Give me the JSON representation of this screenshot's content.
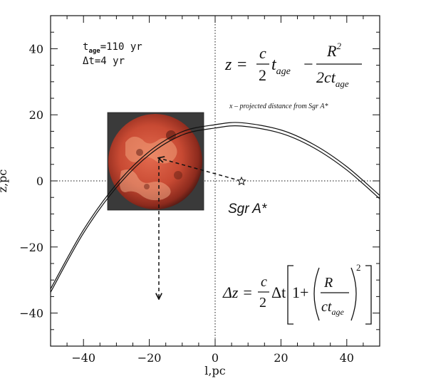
{
  "chart_data": {
    "type": "line",
    "xlabel": "l,pc",
    "ylabel": "z,pc",
    "xlim": [
      -50,
      50
    ],
    "ylim": [
      -50,
      50
    ],
    "xticks": [
      -40,
      -20,
      0,
      20,
      40
    ],
    "yticks": [
      40,
      20,
      0,
      -20,
      -40
    ],
    "xtick_labels": [
      "−40",
      "−20",
      "0",
      "20",
      "40"
    ],
    "ytick_labels": [
      "40",
      "20",
      "0",
      "−20",
      "−40"
    ],
    "reference_lines": {
      "x": 0,
      "y": 0,
      "style": "dotted"
    },
    "series": [
      {
        "x": [
          -50,
          -40,
          -30,
          -20,
          -10,
          0,
          8,
          20,
          30,
          40,
          50
        ],
        "y": [
          -33.7,
          -15.8,
          -2.0,
          7.9,
          13.9,
          16.0,
          16.6,
          14.4,
          10.0,
          3.3,
          -5.4
        ]
      },
      {
        "x": [
          -50,
          -40,
          -30,
          -20,
          -10,
          0,
          8,
          20,
          30,
          40,
          50
        ],
        "y": [
          -32.7,
          -14.8,
          -1.0,
          8.9,
          14.9,
          17.0,
          17.6,
          15.4,
          11.0,
          4.3,
          -4.4
        ]
      }
    ],
    "annotations": {
      "sgr_a_star": {
        "label": "Sgr A*",
        "x": 8,
        "y": 0
      },
      "inset_image_center": {
        "x": -17,
        "y": 7
      },
      "arrow_down_to": {
        "x": -17,
        "y": -36
      }
    },
    "info": {
      "t_prefix": "t",
      "t_subscript": "age",
      "t_value": "=110 yr",
      "dt_line": "Δt=4 yr"
    },
    "equation_z": {
      "lhs": "z = ",
      "c": "c",
      "two": "2",
      "t": "t",
      "age": "age",
      "minus": "−",
      "R": "R",
      "sq": "2",
      "two_c_t": "2ct",
      "age2": "age"
    },
    "note": "x – projected distance from Sgr A*",
    "equation_dz": {
      "lhs": "Δz = ",
      "c": "c",
      "two": "2",
      "dt": "Δt",
      "one_plus": "1+",
      "R": "R",
      "ct": "ct",
      "age": "age",
      "sq": "2"
    }
  }
}
